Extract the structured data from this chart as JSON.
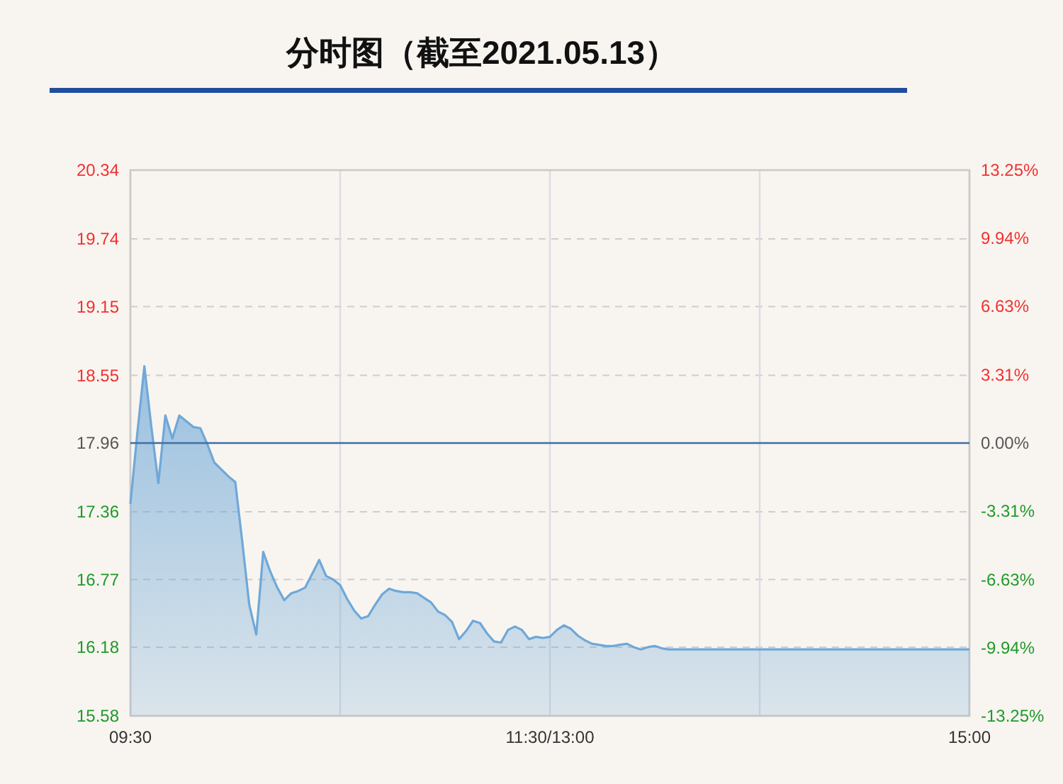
{
  "chart_data": {
    "type": "area",
    "title": "分时图（截至2021.05.13）",
    "categories": [
      "09:30",
      null,
      null,
      null,
      null,
      null,
      null,
      null,
      null,
      null,
      null,
      null,
      null,
      null,
      null,
      null,
      null,
      null,
      null,
      null,
      null,
      null,
      null,
      null,
      null,
      null,
      null,
      null,
      null,
      null,
      null,
      null,
      null,
      null,
      null,
      null,
      null,
      null,
      null,
      null,
      null,
      null,
      null,
      null,
      null,
      null,
      null,
      null,
      null,
      null,
      null,
      null,
      null,
      null,
      null,
      null,
      null,
      null,
      null,
      null,
      "11:30/13:00",
      null,
      null,
      null,
      null,
      null,
      null,
      null,
      null,
      null,
      null,
      null,
      null,
      null,
      null,
      null,
      null,
      null,
      null,
      null,
      null,
      null,
      null,
      null,
      null,
      null,
      null,
      null,
      null,
      null,
      null,
      null,
      null,
      null,
      null,
      null,
      null,
      null,
      null,
      null,
      null,
      null,
      null,
      null,
      null,
      null,
      null,
      null,
      null,
      null,
      null,
      null,
      null,
      null,
      null,
      null,
      null,
      null,
      null,
      null,
      "15:00"
    ],
    "series": [
      {
        "color": "#6fa8d8",
        "values": [
          17.43,
          18.05,
          18.63,
          18.1,
          17.61,
          18.2,
          18.0,
          18.2,
          18.15,
          18.1,
          18.09,
          17.95,
          17.79,
          17.73,
          17.67,
          17.62,
          17.1,
          16.55,
          16.29,
          17.01,
          16.84,
          16.7,
          16.59,
          16.65,
          16.67,
          16.7,
          16.82,
          16.94,
          16.8,
          16.77,
          16.72,
          16.6,
          16.5,
          16.43,
          16.45,
          16.55,
          16.64,
          16.69,
          16.67,
          16.66,
          16.66,
          16.65,
          16.61,
          16.57,
          16.49,
          16.46,
          16.4,
          16.25,
          16.32,
          16.41,
          16.39,
          16.3,
          16.23,
          16.22,
          16.33,
          16.36,
          16.33,
          16.25,
          16.27,
          16.26,
          16.27,
          16.33,
          16.37,
          16.34,
          16.28,
          16.24,
          16.21,
          16.2,
          16.19,
          16.19,
          16.2,
          16.21,
          16.18,
          16.16,
          16.18,
          16.19,
          16.17,
          16.16,
          16.16,
          16.16,
          16.16,
          16.16,
          16.16,
          16.16,
          16.16,
          16.16,
          16.16,
          16.16,
          16.16,
          16.16,
          16.16,
          16.16,
          16.16,
          16.16,
          16.16,
          16.16,
          16.16,
          16.16,
          16.16,
          16.16,
          16.16,
          16.16,
          16.16,
          16.16,
          16.16,
          16.16,
          16.16,
          16.16,
          16.16,
          16.16,
          16.16,
          16.16,
          16.16,
          16.16,
          16.16,
          16.16,
          16.16,
          16.16,
          16.16,
          16.16,
          16.16
        ]
      }
    ],
    "ylim": [
      15.58,
      20.34
    ],
    "yticks": [
      15.58,
      16.18,
      16.77,
      17.36,
      17.96,
      18.55,
      19.15,
      19.74,
      20.34
    ],
    "y2lim": [
      -13.25,
      13.25
    ],
    "y2ticks": [
      {
        "value": -13.25,
        "label": "-13.25%"
      },
      {
        "value": -9.94,
        "label": "-9.94%"
      },
      {
        "value": -6.63,
        "label": "-6.63%"
      },
      {
        "value": -3.31,
        "label": "-3.31%"
      },
      {
        "value": 0,
        "label": "0.00%"
      },
      {
        "value": 3.31,
        "label": "3.31%"
      },
      {
        "value": 6.63,
        "label": "6.63%"
      },
      {
        "value": 9.94,
        "label": "9.94%"
      },
      {
        "value": 13.25,
        "label": "13.25%"
      }
    ],
    "ref_lines": [
      {
        "axis": "y",
        "value": 17.96,
        "color": "#3f6ea8"
      }
    ],
    "grid": true
  }
}
